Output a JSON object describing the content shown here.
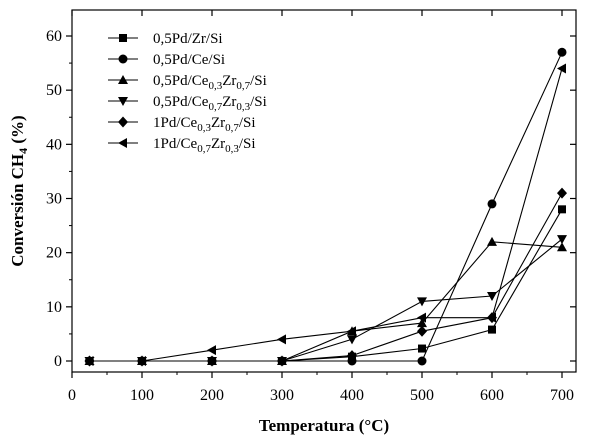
{
  "chart_data": {
    "type": "line",
    "title": "",
    "xlabel": "Temperatura (°C)",
    "ylabel_parts": [
      "Conversión CH",
      "4",
      " (%)"
    ],
    "xlim": [
      0,
      720
    ],
    "ylim": [
      -2,
      65
    ],
    "xticks": [
      0,
      100,
      200,
      300,
      400,
      500,
      600,
      700
    ],
    "yticks": [
      0,
      10,
      20,
      30,
      40,
      50,
      60
    ],
    "grid": false,
    "legend_position": "top-left",
    "series": [
      {
        "name": "0,5Pd/Zr/Si",
        "name_parts": [
          [
            "0,5Pd/Zr/Si",
            false
          ]
        ],
        "marker": "square",
        "x": [
          25,
          100,
          200,
          300,
          400,
          500,
          600,
          700
        ],
        "y": [
          0,
          0,
          0,
          0,
          0.8,
          2.3,
          5.8,
          28
        ]
      },
      {
        "name": "0,5Pd/Ce/Si",
        "name_parts": [
          [
            "0,5Pd/Ce/Si",
            false
          ]
        ],
        "marker": "circle",
        "x": [
          25,
          100,
          200,
          300,
          400,
          500,
          600,
          700
        ],
        "y": [
          0,
          0,
          0,
          0,
          0,
          0,
          29,
          57
        ]
      },
      {
        "name": "0,5Pd/Ce0,3Zr0,7/Si",
        "name_parts": [
          [
            "0,5Pd/Ce",
            false
          ],
          [
            "0,3",
            true
          ],
          [
            "Zr",
            false
          ],
          [
            "0,7",
            true
          ],
          [
            "/Si",
            false
          ]
        ],
        "marker": "triangle-up",
        "x": [
          25,
          100,
          200,
          300,
          400,
          500,
          600,
          700
        ],
        "y": [
          0,
          0,
          0,
          0,
          5.5,
          7,
          22,
          21
        ]
      },
      {
        "name": "0,5Pd/Ce0,7Zr0,3/Si",
        "name_parts": [
          [
            "0,5Pd/Ce",
            false
          ],
          [
            "0,7",
            true
          ],
          [
            "Zr",
            false
          ],
          [
            "0,3",
            true
          ],
          [
            "/Si",
            false
          ]
        ],
        "marker": "triangle-down",
        "x": [
          25,
          100,
          200,
          300,
          400,
          500,
          600,
          700
        ],
        "y": [
          0,
          0,
          0,
          0,
          4,
          11,
          12,
          22.5
        ]
      },
      {
        "name": "1Pd/Ce0,3Zr0,7/Si",
        "name_parts": [
          [
            "1Pd/Ce",
            false
          ],
          [
            "0,3",
            true
          ],
          [
            "Zr",
            false
          ],
          [
            "0,7",
            true
          ],
          [
            "/Si",
            false
          ]
        ],
        "marker": "diamond",
        "x": [
          25,
          100,
          200,
          300,
          400,
          500,
          600,
          700
        ],
        "y": [
          0,
          0,
          0,
          0,
          1,
          5.5,
          8,
          31
        ]
      },
      {
        "name": "1Pd/Ce0,7Zr0,3/Si",
        "name_parts": [
          [
            "1Pd/Ce",
            false
          ],
          [
            "0,7",
            true
          ],
          [
            "Zr",
            false
          ],
          [
            "0,3",
            true
          ],
          [
            "/Si",
            false
          ]
        ],
        "marker": "triangle-left",
        "x": [
          25,
          100,
          200,
          300,
          400,
          500,
          600,
          700
        ],
        "y": [
          0,
          0,
          2,
          4,
          5.5,
          8,
          8,
          54
        ]
      }
    ]
  }
}
